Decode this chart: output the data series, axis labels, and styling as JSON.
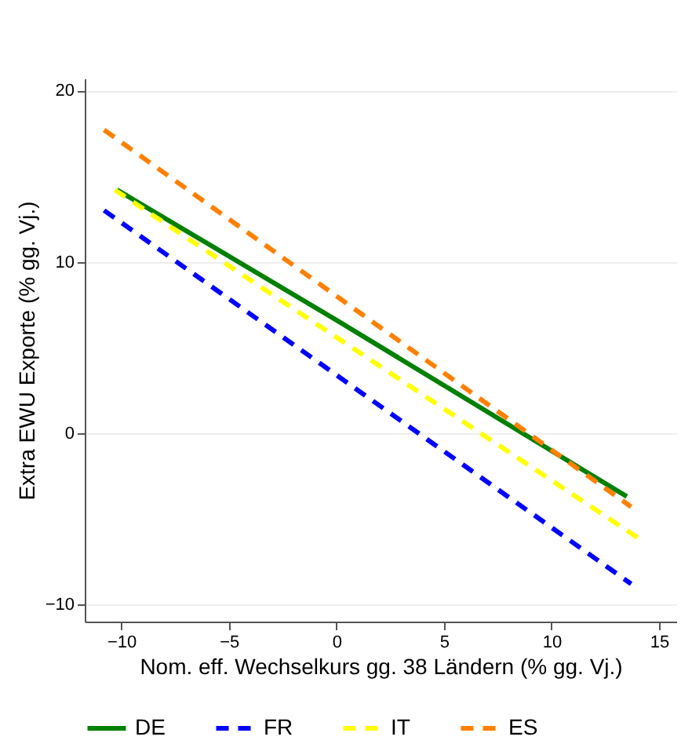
{
  "chart_data": {
    "type": "line",
    "xlabel": "Nom. eff. Wechselkurs gg. 38 Ländern (% gg. Vj.)",
    "ylabel": "Extra EWU Exporte (% gg. Vj.)",
    "xlim": [
      -11.7,
      15.8
    ],
    "ylim": [
      -11,
      20.7
    ],
    "xticks": [
      -10,
      -5,
      0,
      5,
      10,
      15
    ],
    "yticks": [
      -10,
      0,
      10,
      20
    ],
    "grid": "y",
    "legend": "bottom",
    "marker": "none",
    "series": [
      {
        "name": "DE",
        "color": "#008000",
        "line_style": "solid",
        "x": [
          -10.2,
          0,
          13.5
        ],
        "values": [
          14.2,
          6.6,
          -3.7
        ]
      },
      {
        "name": "FR",
        "color": "#0000ff",
        "line_style": "dashed",
        "x": [
          -10.8,
          13.7
        ],
        "values": [
          13.0,
          -8.8
        ]
      },
      {
        "name": "IT",
        "color": "#ffff00",
        "line_style": "dashed",
        "x": [
          -10.3,
          14.0
        ],
        "values": [
          14.2,
          -6.1
        ]
      },
      {
        "name": "ES",
        "color": "#ff8000",
        "line_style": "dashed",
        "x": [
          -10.8,
          13.7
        ],
        "values": [
          17.7,
          -4.3
        ]
      }
    ]
  }
}
